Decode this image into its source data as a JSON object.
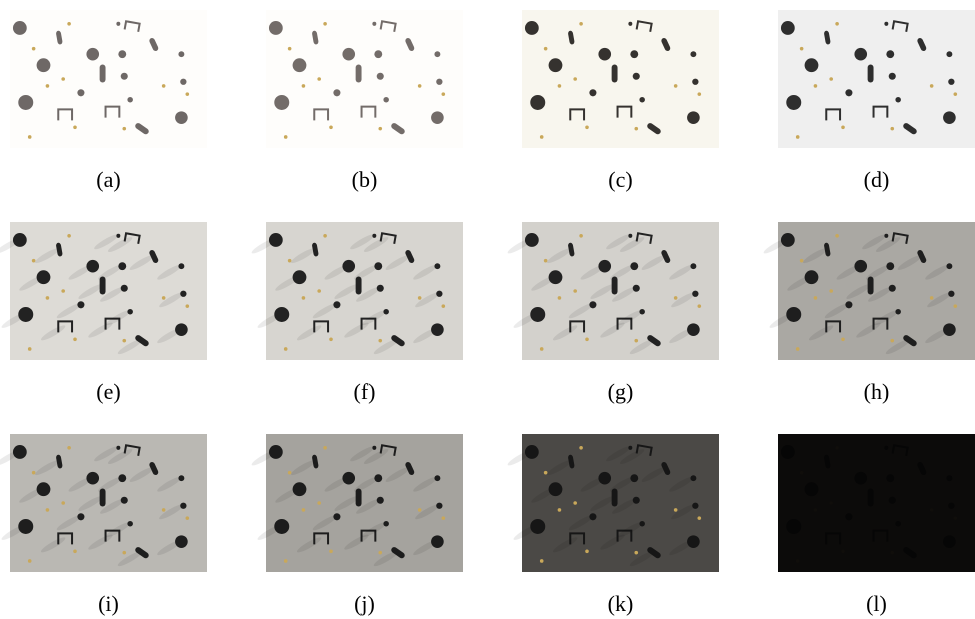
{
  "figure": {
    "panels": [
      "(a)",
      "(b)",
      "(c)",
      "(d)",
      "(e)",
      "(f)",
      "(g)",
      "(h)",
      "(i)",
      "(j)",
      "(k)",
      "(l)"
    ]
  }
}
